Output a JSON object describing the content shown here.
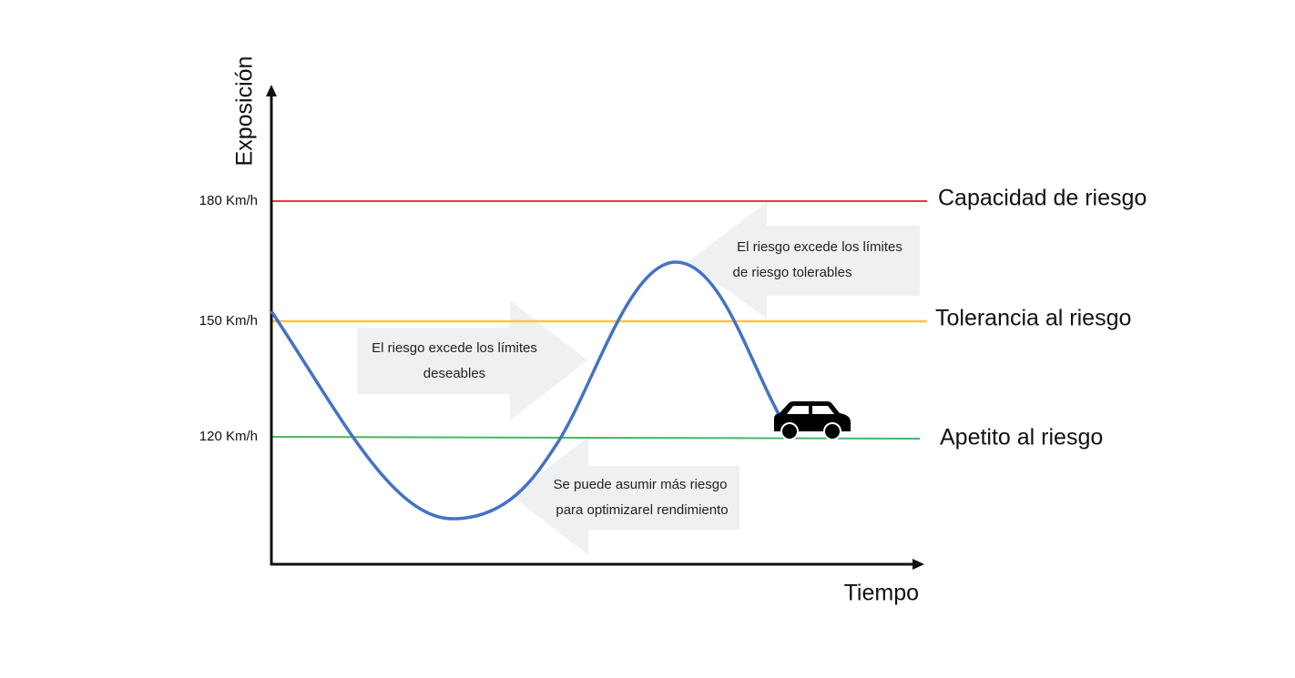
{
  "y_axis_label": "Exposición",
  "x_axis_label": "Tiempo",
  "levels": [
    {
      "tick": "180 Km/h",
      "name": "Capacidad de riesgo"
    },
    {
      "tick": "150 Km/h",
      "name": "Tolerancia al riesgo"
    },
    {
      "tick": "120 Km/h",
      "name": "Apetito al riesgo"
    }
  ],
  "callouts": [
    {
      "lines": [
        "El riesgo excede los límites",
        "deseables"
      ]
    },
    {
      "lines": [
        "El riesgo excede los límites",
        "de riesgo tolerables"
      ]
    },
    {
      "lines": [
        "Se puede asumir más riesgo",
        "para optimizarel rendimiento"
      ]
    }
  ]
}
